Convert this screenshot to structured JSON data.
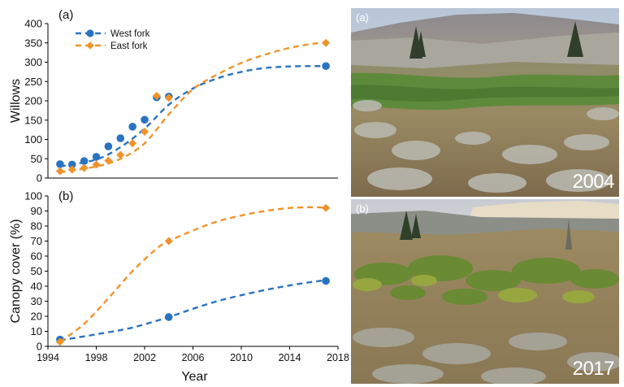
{
  "chart_data": [
    {
      "type": "scatter",
      "panel_label": "(a)",
      "ylabel": "Willows",
      "xlabel": "",
      "xlim": [
        1994,
        2018
      ],
      "ylim": [
        0,
        400
      ],
      "yticks": [
        0,
        50,
        100,
        150,
        200,
        250,
        300,
        350,
        400
      ],
      "legend": "top-left",
      "series": [
        {
          "name": "West fork",
          "color": "#2a73c2",
          "x": [
            1995,
            1996,
            1997,
            1998,
            1999,
            2000,
            2001,
            2002,
            2003,
            2004,
            2017
          ],
          "y": [
            36,
            35,
            44,
            55,
            82,
            103,
            133,
            151,
            209,
            211,
            290
          ],
          "trend_x": [
            1995,
            1998,
            2000,
            2002,
            2004,
            2006,
            2008,
            2010,
            2012,
            2014,
            2016,
            2017
          ],
          "trend_y": [
            30,
            48,
            80,
            128,
            190,
            232,
            258,
            275,
            285,
            289,
            290,
            290
          ]
        },
        {
          "name": "East fork",
          "color": "#f0932b",
          "x": [
            1995,
            1996,
            1997,
            1998,
            1999,
            2000,
            2001,
            2002,
            2003,
            2004,
            2017
          ],
          "y": [
            18,
            22,
            26,
            35,
            45,
            60,
            90,
            120,
            213,
            208,
            350
          ],
          "trend_x": [
            1995,
            1998,
            2000,
            2002,
            2004,
            2006,
            2008,
            2010,
            2012,
            2014,
            2016,
            2017
          ],
          "trend_y": [
            15,
            30,
            50,
            90,
            165,
            230,
            268,
            298,
            320,
            337,
            348,
            351
          ]
        }
      ]
    },
    {
      "type": "scatter",
      "panel_label": "(b)",
      "ylabel": "Canopy cover (%)",
      "xlabel": "Year",
      "xlim": [
        1994,
        2018
      ],
      "ylim": [
        0,
        100
      ],
      "yticks": [
        0,
        10,
        20,
        30,
        40,
        50,
        60,
        70,
        80,
        90,
        100
      ],
      "xticks": [
        1994,
        1998,
        2002,
        2006,
        2010,
        2014,
        2018
      ],
      "series": [
        {
          "name": "West fork",
          "color": "#2a73c2",
          "x": [
            1995,
            2004,
            2017
          ],
          "y": [
            4.5,
            19.5,
            43.5
          ],
          "trend_x": [
            1995,
            1998,
            2001,
            2004,
            2006,
            2008,
            2010,
            2012,
            2014,
            2016,
            2017
          ],
          "trend_y": [
            4,
            8,
            12.5,
            19.5,
            25,
            30,
            34,
            37.5,
            40.5,
            43,
            44
          ]
        },
        {
          "name": "East fork",
          "color": "#f0932b",
          "x": [
            1995,
            2004,
            2017
          ],
          "y": [
            3,
            70,
            92
          ],
          "trend_x": [
            1995,
            1997,
            1999,
            2001,
            2003,
            2004,
            2006,
            2008,
            2010,
            2012,
            2014,
            2016,
            2017
          ],
          "trend_y": [
            3,
            15,
            32,
            50,
            65,
            70,
            77,
            83,
            87,
            90,
            92,
            92.5,
            92
          ]
        }
      ]
    }
  ],
  "photos": {
    "top": {
      "label": "(a)",
      "year": "2004"
    },
    "bottom": {
      "label": "(b)",
      "year": "2017"
    }
  }
}
